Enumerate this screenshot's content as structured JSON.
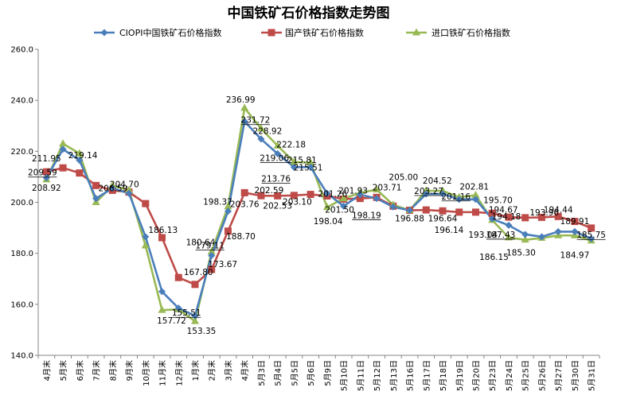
{
  "chart_data": {
    "type": "line",
    "title": "中国铁矿石价格指数走势图",
    "xlabel": "",
    "ylabel": "",
    "ylim": [
      140,
      260
    ],
    "yticks": [
      "140.0",
      "160.0",
      "180.0",
      "200.0",
      "220.0",
      "240.0",
      "260.0"
    ],
    "grid": false,
    "legend_position": "top",
    "categories": [
      "4月末",
      "5月末",
      "6月末",
      "7月末",
      "8月末",
      "9月末",
      "10月末",
      "11月末",
      "12月末",
      "1月末",
      "2月末",
      "3月末",
      "4月末",
      "5月3日",
      "5月4日",
      "5月5日",
      "5月6日",
      "5月9日",
      "5月10日",
      "5月11日",
      "5月12日",
      "5月13日",
      "5月16日",
      "5月17日",
      "5月18日",
      "5月19日",
      "5月20日",
      "5月23日",
      "5月24日",
      "5月25日",
      "5月26日",
      "5月27日",
      "5月30日",
      "5月31日"
    ],
    "series": [
      {
        "name": "CIOPI中国铁矿石价格指数",
        "color": "#4a7ebb",
        "marker": "diamond",
        "values": [
          209.59,
          220.8,
          216.5,
          201.5,
          205.5,
          203.5,
          186.5,
          165.0,
          158.5,
          155.51,
          179.11,
          196.5,
          231.72,
          224.8,
          219.06,
          213.76,
          213.76,
          203.5,
          198.5,
          203.0,
          201.5,
          198.19,
          196.88,
          203.27,
          203.3,
          201.16,
          201.16,
          193.5,
          191.0,
          187.43,
          186.5,
          188.5,
          188.5,
          185.75
        ]
      },
      {
        "name": "国产铁矿石价格指数",
        "color": "#be4b48",
        "marker": "square",
        "values": [
          211.95,
          213.5,
          211.5,
          206.59,
          204.7,
          204.0,
          199.5,
          186.13,
          170.5,
          167.8,
          173.67,
          188.7,
          203.76,
          202.59,
          202.53,
          202.7,
          203.1,
          202.5,
          201.26,
          201.5,
          201.93,
          198.5,
          196.88,
          197.0,
          196.64,
          196.14,
          196.14,
          195.7,
          194.18,
          193.96,
          194.1,
          194.44,
          192.5,
          189.91
        ]
      },
      {
        "name": "进口铁矿石价格指数",
        "color": "#98b954",
        "marker": "triangle",
        "values": [
          208.92,
          223.0,
          219.14,
          200.0,
          206.59,
          204.7,
          183.0,
          157.72,
          158.0,
          153.35,
          180.64,
          198.37,
          236.99,
          228.92,
          222.18,
          215.81,
          215.51,
          198.04,
          201.5,
          203.71,
          205.0,
          199.0,
          196.88,
          204.52,
          204.52,
          202.0,
          202.81,
          193.04,
          186.15,
          185.3,
          186.0,
          187.0,
          187.0,
          184.97
        ]
      }
    ],
    "data_labels": [
      "208.92",
      "211.95",
      "209.59",
      "219.14",
      "206.59",
      "204.70",
      "186.13",
      "157.72",
      "155.51",
      "153.35",
      "167.80",
      "173.67",
      "180.64",
      "179.11",
      "198.37",
      "188.70",
      "203.76",
      "236.99",
      "231.72",
      "228.92",
      "222.18",
      "219.06",
      "213.76",
      "215.81",
      "215.51",
      "202.59",
      "202.53",
      "203.10",
      "198.04",
      "201.26",
      "201.50",
      "201.93",
      "198.19",
      "203.71",
      "205.00",
      "196.88",
      "203.27",
      "204.52",
      "196.64",
      "201.16",
      "196.14",
      "202.81",
      "193.04",
      "195.70",
      "186.15",
      "194.67",
      "194.18",
      "187.43",
      "185.30",
      "193.96",
      "194.44",
      "189.91",
      "185.75",
      "184.97"
    ]
  }
}
